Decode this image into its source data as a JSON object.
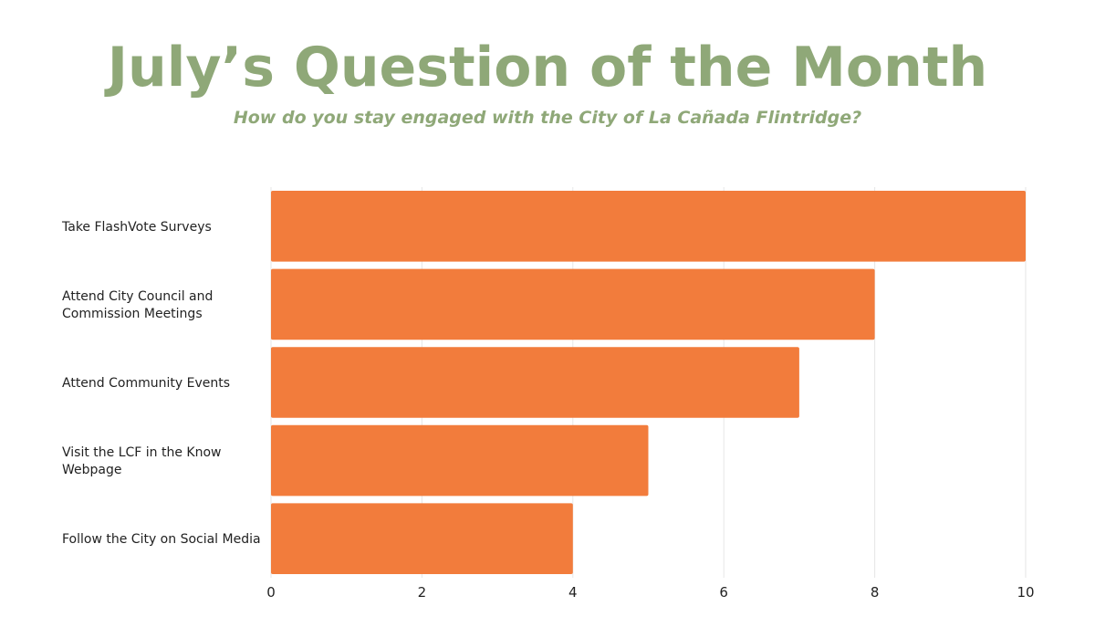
{
  "header": {
    "title": "July’s Question of the Month",
    "subtitle": "How do you stay engaged with the City of La Cañada Flintridge?"
  },
  "chart_data": {
    "type": "bar",
    "orientation": "horizontal",
    "title": "July’s Question of the Month",
    "subtitle": "How do you stay engaged with the City of La Cañada Flintridge?",
    "categories": [
      [
        "Take FlashVote Surveys"
      ],
      [
        "Attend City Council and",
        "Commission Meetings"
      ],
      [
        "Attend Community Events"
      ],
      [
        "Visit the LCF in the Know",
        "Webpage"
      ],
      [
        "Follow the City on Social Media"
      ]
    ],
    "values": [
      10,
      8,
      7,
      5,
      4
    ],
    "xlim": [
      0,
      10
    ],
    "xticks": [
      0,
      2,
      4,
      6,
      8,
      10
    ],
    "grid": true,
    "legend": "none",
    "bar_color": "#f27c3c",
    "grid_color": "#e6e6e6",
    "xlabel": "",
    "ylabel": ""
  }
}
